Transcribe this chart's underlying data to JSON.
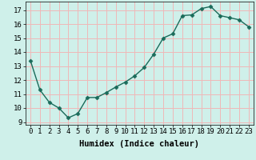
{
  "x": [
    0,
    1,
    2,
    3,
    4,
    5,
    6,
    7,
    8,
    9,
    10,
    11,
    12,
    13,
    14,
    15,
    16,
    17,
    18,
    19,
    20,
    21,
    22,
    23
  ],
  "y": [
    13.4,
    11.3,
    10.4,
    10.0,
    9.3,
    9.6,
    10.75,
    10.75,
    11.1,
    11.5,
    11.85,
    12.3,
    12.9,
    13.85,
    15.0,
    15.3,
    16.6,
    16.65,
    17.1,
    17.25,
    16.6,
    16.45,
    16.3,
    15.8
  ],
  "line_color": "#1a6b5a",
  "marker": "D",
  "marker_size": 2.5,
  "bg_color": "#cff0ea",
  "grid_color": "#f0b8b8",
  "xlabel": "Humidex (Indice chaleur)",
  "ylabel_ticks": [
    9,
    10,
    11,
    12,
    13,
    14,
    15,
    16,
    17
  ],
  "ylim": [
    8.8,
    17.6
  ],
  "xlim": [
    -0.5,
    23.5
  ],
  "xlabel_fontsize": 7.5,
  "tick_fontsize": 6.5
}
